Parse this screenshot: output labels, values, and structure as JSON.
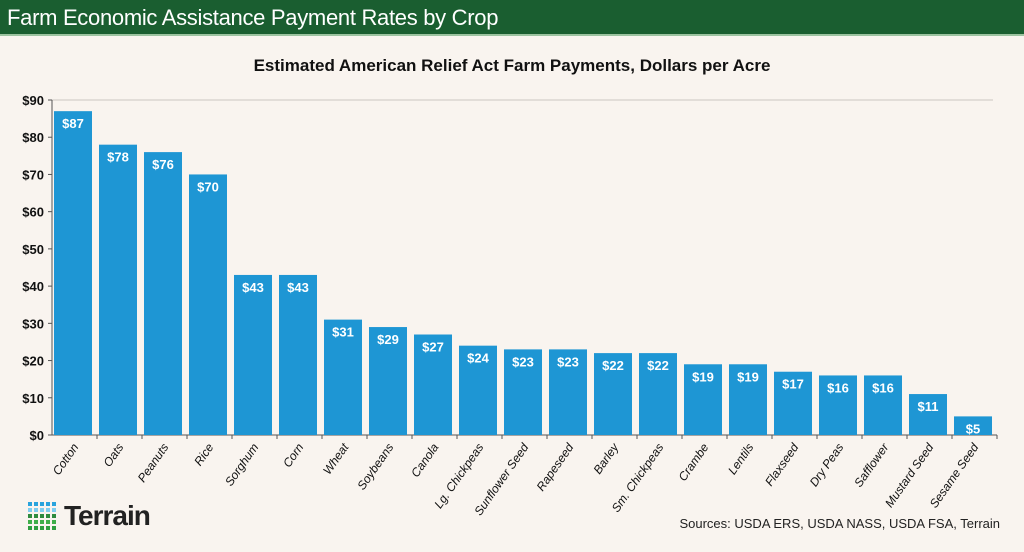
{
  "header": {
    "title": "Farm Economic Assistance Payment Rates by Crop"
  },
  "chart_data": {
    "type": "bar",
    "title": "Estimated American Relief Act Farm Payments, Dollars per Acre",
    "categories": [
      "Cotton",
      "Oats",
      "Peanuts",
      "Rice",
      "Sorghum",
      "Corn",
      "Wheat",
      "Soybeans",
      "Canola",
      "Lg. Chickpeas",
      "Sunflower Seed",
      "Rapeseed",
      "Barley",
      "Sm. Chickpeas",
      "Crambe",
      "Lentils",
      "Flaxseed",
      "Dry Peas",
      "Safflower",
      "Mustard Seed",
      "Sesame Seed"
    ],
    "values": [
      87,
      78,
      76,
      70,
      43,
      43,
      31,
      29,
      27,
      24,
      23,
      23,
      22,
      22,
      19,
      19,
      17,
      16,
      16,
      11,
      5
    ],
    "data_labels": [
      "$87",
      "$78",
      "$76",
      "$70",
      "$43",
      "$43",
      "$31",
      "$29",
      "$27",
      "$24",
      "$23",
      "$23",
      "$22",
      "$22",
      "$19",
      "$19",
      "$17",
      "$16",
      "$16",
      "$11",
      "$5"
    ],
    "yticks": [
      "$0",
      "$10",
      "$20",
      "$30",
      "$40",
      "$50",
      "$60",
      "$70",
      "$80",
      "$90"
    ],
    "ylim": [
      0,
      90
    ],
    "grid": false,
    "bar_color": "#1e96d4"
  },
  "footer": {
    "sources": "Sources: USDA ERS, USDA NASS, USDA FSA, Terrain",
    "brand": "Terrain"
  },
  "colors": {
    "header": "#1a5e30",
    "background": "#f9f4ef"
  }
}
